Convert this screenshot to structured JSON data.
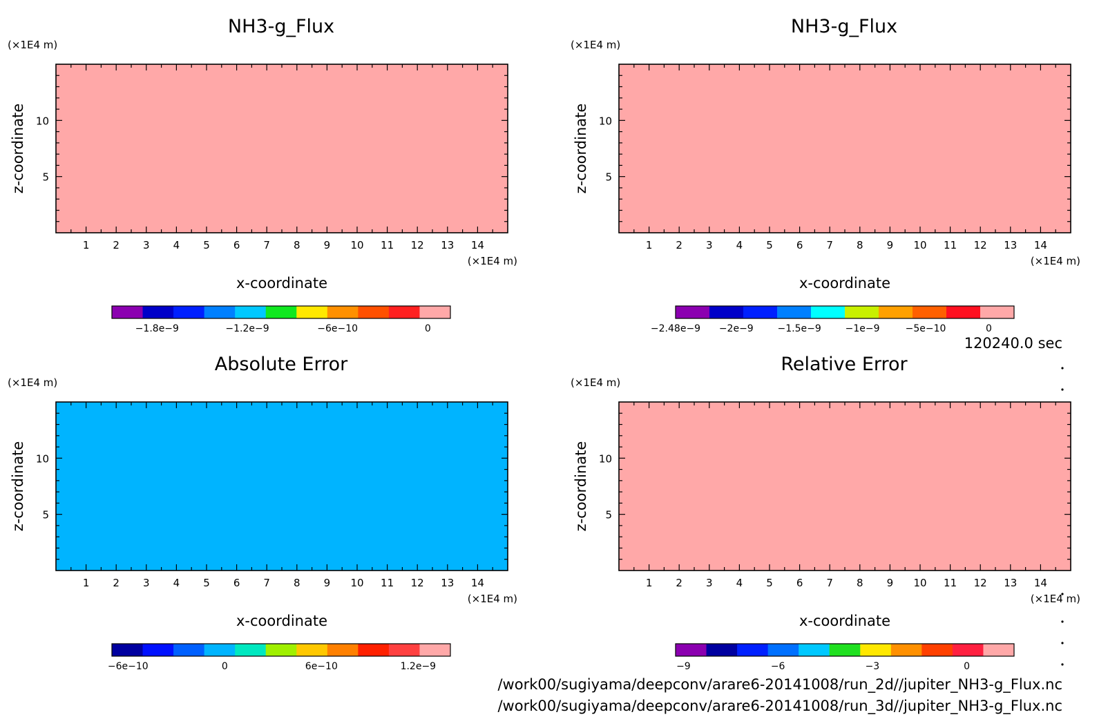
{
  "time_label": "120240.0 sec",
  "footer": {
    "line1": "/work00/sugiyama/deepconv/arare6-20141008/run_2d//jupiter_NH3-g_Flux.nc",
    "line2": "/work00/sugiyama/deepconv/arare6-20141008/run_3d//jupiter_NH3-g_Flux.nc"
  },
  "chart_data": [
    {
      "type": "heatmap",
      "title": "NH3-g_Flux",
      "xlabel": "x-coordinate",
      "ylabel": "z-coordinate",
      "x_unit": "(×1E4 m)",
      "y_unit": "(×1E4 m)",
      "xlim": [
        0,
        15
      ],
      "ylim": [
        0,
        15
      ],
      "x_ticks": [
        1,
        2,
        3,
        4,
        5,
        6,
        7,
        8,
        9,
        10,
        11,
        12,
        13,
        14
      ],
      "y_ticks": [
        5,
        10
      ],
      "field_color": "#ffa8a8",
      "colorbar": {
        "range": [
          -2.1e-09,
          1.5e-10
        ],
        "colors": [
          "#8b00b0",
          "#0000c8",
          "#0020ff",
          "#0080ff",
          "#00c8ff",
          "#10e820",
          "#ffe800",
          "#ff9000",
          "#ff5000",
          "#ff2020",
          "#ffa8a8"
        ],
        "ticks": [
          {
            "value": -1.8e-09,
            "label": "−1.8e−9"
          },
          {
            "value": -1.2e-09,
            "label": "−1.2e−9"
          },
          {
            "value": -6e-10,
            "label": "−6e−10"
          },
          {
            "value": 0,
            "label": "0"
          }
        ]
      }
    },
    {
      "type": "heatmap",
      "title": "NH3-g_Flux",
      "xlabel": "x-coordinate",
      "ylabel": "z-coordinate",
      "x_unit": "(×1E4 m)",
      "y_unit": "(×1E4 m)",
      "xlim": [
        0,
        15
      ],
      "ylim": [
        0,
        15
      ],
      "x_ticks": [
        1,
        2,
        3,
        4,
        5,
        6,
        7,
        8,
        9,
        10,
        11,
        12,
        13,
        14
      ],
      "y_ticks": [
        5,
        10
      ],
      "field_color": "#ffa8a8",
      "colorbar": {
        "range": [
          -2.48e-09,
          2e-10
        ],
        "colors": [
          "#8b00b0",
          "#0000c8",
          "#0020ff",
          "#0080ff",
          "#00ffff",
          "#c8f000",
          "#ffa000",
          "#ff6000",
          "#ff1020",
          "#ffa8a8"
        ],
        "ticks": [
          {
            "value": -2.48e-09,
            "label": "−2.48e−9"
          },
          {
            "value": -2e-09,
            "label": "−2e−9"
          },
          {
            "value": -1.5e-09,
            "label": "−1.5e−9"
          },
          {
            "value": -1e-09,
            "label": "−1e−9"
          },
          {
            "value": -5e-10,
            "label": "−5e−10"
          },
          {
            "value": 0,
            "label": "0"
          }
        ]
      }
    },
    {
      "type": "heatmap",
      "title": "Absolute Error",
      "xlabel": "x-coordinate",
      "ylabel": "z-coordinate",
      "x_unit": "(×1E4 m)",
      "y_unit": "(×1E4 m)",
      "xlim": [
        0,
        15
      ],
      "ylim": [
        0,
        15
      ],
      "x_ticks": [
        1,
        2,
        3,
        4,
        5,
        6,
        7,
        8,
        9,
        10,
        11,
        12,
        13,
        14
      ],
      "y_ticks": [
        5,
        10
      ],
      "field_color": "#00b4ff",
      "colorbar": {
        "range": [
          -7e-10,
          1.4e-09
        ],
        "colors": [
          "#0000a0",
          "#0010ff",
          "#0060ff",
          "#00b4ff",
          "#00e8c0",
          "#a0f000",
          "#ffc800",
          "#ff8000",
          "#ff2000",
          "#ff4040",
          "#ffa8a8"
        ],
        "ticks": [
          {
            "value": -6e-10,
            "label": "−6e−10"
          },
          {
            "value": 0,
            "label": "0"
          },
          {
            "value": 6e-10,
            "label": "6e−10"
          },
          {
            "value": 1.2e-09,
            "label": "1.2e−9"
          }
        ]
      }
    },
    {
      "type": "heatmap",
      "title": "Relative Error",
      "xlabel": "x-coordinate",
      "ylabel": "z-coordinate",
      "x_unit": "(×1E4 m)",
      "y_unit": "(×1E4 m)",
      "xlim": [
        0,
        15
      ],
      "ylim": [
        0,
        15
      ],
      "x_ticks": [
        1,
        2,
        3,
        4,
        5,
        6,
        7,
        8,
        9,
        10,
        11,
        12,
        13,
        14
      ],
      "y_ticks": [
        5,
        10
      ],
      "field_color": "#ffa8a8",
      "colorbar": {
        "range": [
          -9.25,
          1.5
        ],
        "colors": [
          "#8b00b0",
          "#0000a0",
          "#0020ff",
          "#0070ff",
          "#00c8ff",
          "#20e020",
          "#ffe800",
          "#ff9000",
          "#ff4000",
          "#ff2040",
          "#ffa8a8"
        ],
        "ticks": [
          {
            "value": -9,
            "label": "−9"
          },
          {
            "value": -6,
            "label": "−6"
          },
          {
            "value": -3,
            "label": "−3"
          },
          {
            "value": 0,
            "label": "0"
          }
        ]
      }
    }
  ]
}
